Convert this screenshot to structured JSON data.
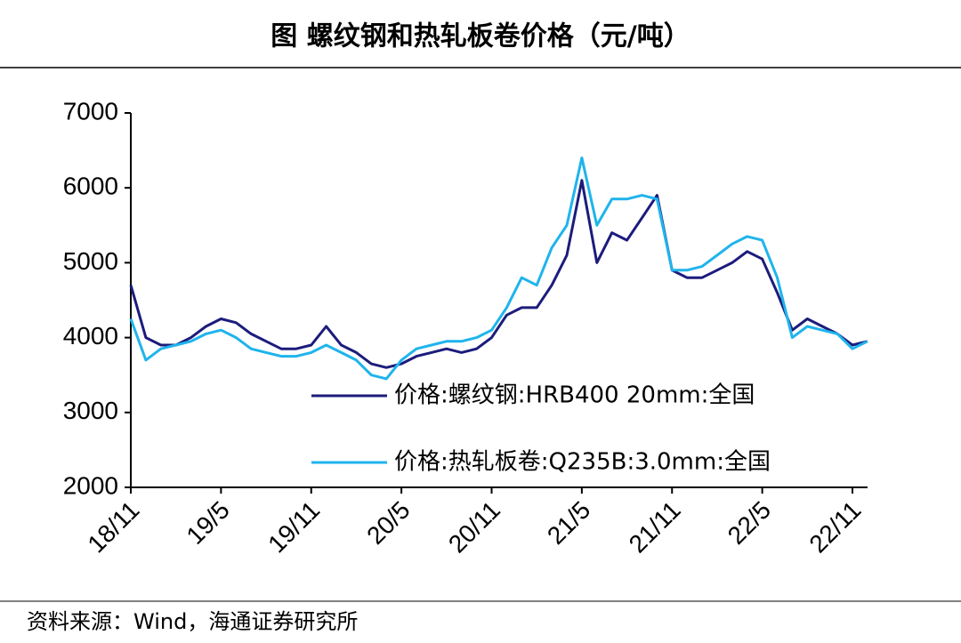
{
  "chart_data": {
    "type": "line",
    "title": "图  螺纹钢和热轧板卷价格（元/吨）",
    "source": "资料来源：Wind，海通证券研究所",
    "categories": [
      "18/11",
      null,
      null,
      null,
      null,
      null,
      "19/5",
      null,
      null,
      null,
      null,
      null,
      "19/11",
      null,
      null,
      null,
      null,
      null,
      "20/5",
      null,
      null,
      null,
      null,
      null,
      "20/11",
      null,
      null,
      null,
      null,
      null,
      "21/5",
      null,
      null,
      null,
      null,
      null,
      "21/11",
      null,
      null,
      null,
      null,
      null,
      "22/5",
      null,
      null,
      null,
      null,
      null,
      "22/11",
      null
    ],
    "series": [
      {
        "name": "价格:螺纹钢:HRB400 20mm:全国",
        "color": "#1c1c7c",
        "values": [
          4700,
          4000,
          3900,
          3900,
          4000,
          4150,
          4250,
          4200,
          4050,
          3950,
          3850,
          3850,
          3900,
          4150,
          3900,
          3800,
          3650,
          3600,
          3650,
          3750,
          3800,
          3850,
          3800,
          3850,
          4000,
          4300,
          4400,
          4400,
          4700,
          5100,
          6100,
          5000,
          5400,
          5300,
          5600,
          5900,
          4900,
          4800,
          4800,
          4900,
          5000,
          5150,
          5050,
          4600,
          4100,
          4250,
          4150,
          4050,
          3900,
          3950
        ]
      },
      {
        "name": "价格:热轧板卷:Q235B:3.0mm:全国",
        "color": "#1fb4ec",
        "values": [
          4250,
          3700,
          3850,
          3900,
          3950,
          4050,
          4100,
          4000,
          3850,
          3800,
          3750,
          3750,
          3800,
          3900,
          3800,
          3700,
          3500,
          3450,
          3700,
          3850,
          3900,
          3950,
          3950,
          4000,
          4100,
          4400,
          4800,
          4700,
          5200,
          5500,
          6400,
          5500,
          5850,
          5850,
          5900,
          5850,
          4900,
          4900,
          4950,
          5100,
          5250,
          5350,
          5300,
          4800,
          4000,
          4150,
          4100,
          4050,
          3850,
          3950
        ]
      }
    ],
    "ylim": [
      2000,
      7000
    ],
    "yticks": [
      2000,
      3000,
      4000,
      5000,
      6000,
      7000
    ],
    "grid": false
  }
}
